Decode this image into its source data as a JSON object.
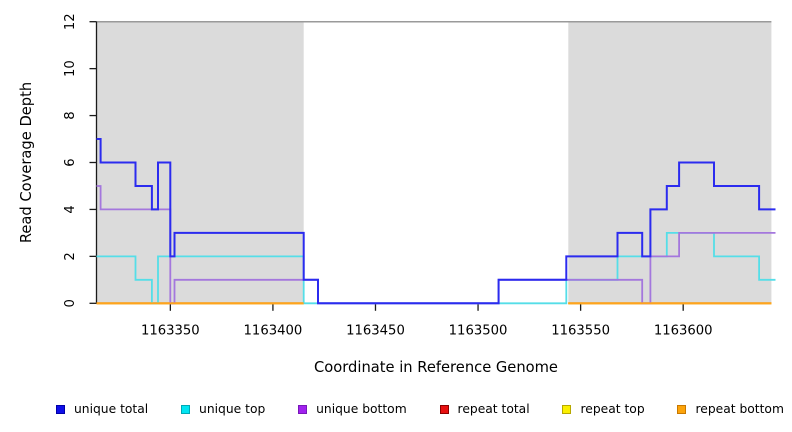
{
  "figure_bg": "#FFFFFF",
  "axis_color": "#1A1A1A",
  "chart_data": {
    "type": "line",
    "subtype": "step-after",
    "title": "",
    "xlabel": "Coordinate in Reference Genome",
    "ylabel": "Read Coverage Depth",
    "xlim": [
      1163314,
      1163645
    ],
    "ylim": [
      0,
      12
    ],
    "x_ticks": [
      1163350,
      1163400,
      1163450,
      1163500,
      1163550,
      1163600
    ],
    "y_ticks": [
      0,
      2,
      4,
      6,
      8,
      10,
      12
    ],
    "grid": "off",
    "legend_position": "bottom",
    "shaded_regions": [
      {
        "x0": 1163314,
        "x1": 1163415,
        "color": "#DBDBDB"
      },
      {
        "x0": 1163544,
        "x1": 1163643,
        "color": "#DBDBDB"
      }
    ],
    "frame_top": {
      "x0": 1163314,
      "x1": 1163643,
      "y": 12,
      "color": "#9A9A9A"
    },
    "series": [
      {
        "name": "repeat total",
        "color": "#E01010",
        "segments": [
          [
            [
              1163314,
              0
            ],
            [
              1163415,
              0
            ]
          ],
          [
            [
              1163544,
              0
            ],
            [
              1163643,
              0
            ]
          ]
        ]
      },
      {
        "name": "repeat top",
        "color": "#F5E600",
        "segments": [
          [
            [
              1163314,
              0
            ],
            [
              1163415,
              0
            ]
          ],
          [
            [
              1163544,
              0
            ],
            [
              1163643,
              0
            ]
          ]
        ]
      },
      {
        "name": "unique top",
        "color": "#55DEE8",
        "segments": [
          [
            [
              1163314,
              2
            ],
            [
              1163333,
              1
            ],
            [
              1163341,
              0
            ],
            [
              1163344,
              2
            ],
            [
              1163415,
              0
            ],
            [
              1163543,
              1
            ],
            [
              1163568,
              2
            ],
            [
              1163592,
              3
            ],
            [
              1163615,
              2
            ],
            [
              1163637,
              1
            ],
            [
              1163645,
              1
            ]
          ]
        ]
      },
      {
        "name": "unique bottom",
        "color": "#A477DD",
        "segments": [
          [
            [
              1163314,
              5
            ],
            [
              1163316,
              4
            ],
            [
              1163350,
              0
            ],
            [
              1163352,
              1
            ],
            [
              1163422,
              0
            ],
            [
              1163510,
              1
            ],
            [
              1163580,
              0
            ],
            [
              1163584,
              2
            ],
            [
              1163598,
              3
            ],
            [
              1163645,
              3
            ]
          ]
        ]
      },
      {
        "name": "unique total",
        "color": "#2B2BEF",
        "segments": [
          [
            [
              1163314,
              7
            ],
            [
              1163316,
              6
            ],
            [
              1163333,
              5
            ],
            [
              1163341,
              4
            ],
            [
              1163344,
              6
            ],
            [
              1163350,
              2
            ],
            [
              1163352,
              3
            ],
            [
              1163415,
              1
            ],
            [
              1163422,
              0
            ],
            [
              1163510,
              1
            ],
            [
              1163543,
              2
            ],
            [
              1163568,
              3
            ],
            [
              1163580,
              2
            ],
            [
              1163584,
              4
            ],
            [
              1163592,
              5
            ],
            [
              1163598,
              6
            ],
            [
              1163615,
              5
            ],
            [
              1163637,
              4
            ],
            [
              1163645,
              4
            ]
          ]
        ]
      },
      {
        "name": "repeat bottom",
        "color": "#FFA41C",
        "segments": [
          [
            [
              1163314,
              0
            ],
            [
              1163415,
              0
            ]
          ],
          [
            [
              1163544,
              0
            ],
            [
              1163643,
              0
            ]
          ]
        ]
      }
    ]
  },
  "legend": {
    "items": [
      {
        "label": "unique total",
        "fill": "#0F0FE8",
        "border": "#0000A8"
      },
      {
        "label": "unique top",
        "fill": "#00E5F2",
        "border": "#00A8B4"
      },
      {
        "label": "unique bottom",
        "fill": "#A121EF",
        "border": "#7818B8"
      },
      {
        "label": "repeat total",
        "fill": "#E81010",
        "border": "#8B0000"
      },
      {
        "label": "repeat top",
        "fill": "#FBF000",
        "border": "#B7A800"
      },
      {
        "label": "repeat bottom",
        "fill": "#FCA40B",
        "border": "#C87800"
      }
    ]
  }
}
